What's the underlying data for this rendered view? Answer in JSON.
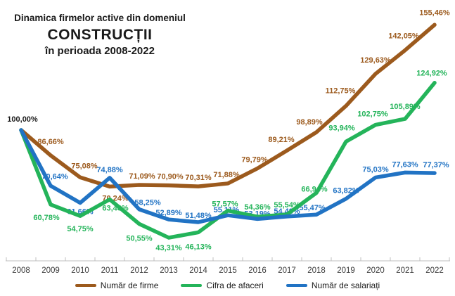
{
  "title": {
    "line1": "Dinamica firmelor active din domeniul",
    "line2": "CONSTRUCȚII",
    "line3": "în perioada 2008-2022"
  },
  "chart_data": {
    "type": "line",
    "x": [
      "2008",
      "2009",
      "2010",
      "2011",
      "2012",
      "2013",
      "2014",
      "2015",
      "2016",
      "2017",
      "2018",
      "2019",
      "2020",
      "2021",
      "2022"
    ],
    "start_label": "100,00%",
    "label_format": "percent-comma",
    "ylim": [
      40,
      160
    ],
    "grid": false,
    "legend_position": "bottom",
    "axis_color": "#bfbfbf",
    "series": [
      {
        "name": "Număr de firme",
        "color": "#9c5a1d",
        "values": [
          100.0,
          86.66,
          75.08,
          70.24,
          71.09,
          70.9,
          70.31,
          71.88,
          79.79,
          89.21,
          98.89,
          112.75,
          129.63,
          142.05,
          155.46
        ],
        "labels": [
          "100,00%",
          "86,66%",
          "75,08%",
          "70,24%",
          "71,09%",
          "70,90%",
          "70,31%",
          "71,88%",
          "79,79%",
          "89,21%",
          "98,89%",
          "112,75%",
          "129,63%",
          "142,05%",
          "155,46%"
        ]
      },
      {
        "name": "Cifra de afaceri",
        "color": "#24b45a",
        "values": [
          100.0,
          60.78,
          54.75,
          63.48,
          50.55,
          43.31,
          46.13,
          57.57,
          54.36,
          55.54,
          66.94,
          93.94,
          102.75,
          105.89,
          124.92
        ],
        "labels": [
          null,
          "60,78%",
          "54,75%",
          "63,48%",
          "50,55%",
          "43,31%",
          "46,13%",
          "57,57%",
          "54,36%",
          "55,54%",
          "66,94%",
          "93,94%",
          "102,75%",
          "105,89%",
          "124,92%"
        ]
      },
      {
        "name": "Număr de salariați",
        "color": "#2173c4",
        "values": [
          100.0,
          70.64,
          61.66,
          74.88,
          58.25,
          52.89,
          51.48,
          55.11,
          53.19,
          54.48,
          55.47,
          63.82,
          75.03,
          77.63,
          77.37
        ],
        "labels": [
          null,
          "70,64%",
          "61,66%",
          "74,88%",
          "58,25%",
          "52,89%",
          "51,48%",
          "55,11%",
          "53,19%",
          "54,48%",
          "55,47%",
          "63,82%",
          "75,03%",
          "77,63%",
          "77,37%"
        ]
      }
    ]
  },
  "legend": {
    "items": [
      {
        "label": "Număr de firme"
      },
      {
        "label": "Cifra de afaceri"
      },
      {
        "label": "Număr de salariați"
      }
    ]
  }
}
